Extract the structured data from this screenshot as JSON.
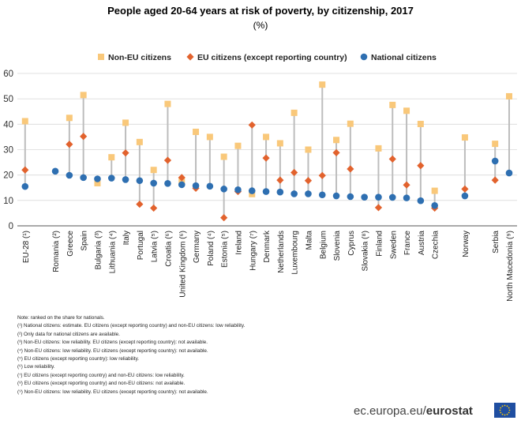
{
  "chart_data": {
    "type": "scatter",
    "title": "People aged 20-64 years at risk of poverty, by citizenship, 2017",
    "subtitle": "(%)",
    "ylim": [
      0,
      60
    ],
    "yticks": [
      0,
      10,
      20,
      30,
      40,
      50,
      60
    ],
    "grid": true,
    "legend_position": "top",
    "categories": [
      "EU-28 (¹)",
      "Romania (²)",
      "Greece",
      "Spain",
      "Bulgaria (³)",
      "Lithuania (⁴)",
      "Italy",
      "Portugal",
      "Latvia (⁵)",
      "Croatia (⁶)",
      "United Kingdom (⁶)",
      "Germany",
      "Poland (⁴)",
      "Estonia (⁵)",
      "Ireland",
      "Hungary (⁷)",
      "Denmark",
      "Netherlands",
      "Luxembourg",
      "Malta",
      "Belgium",
      "Slovenia",
      "Cyprus",
      "Slovakia (⁸)",
      "Finland",
      "Sweden",
      "France",
      "Austria",
      "Czechia",
      "Norway",
      "Serbia",
      "North Macedonia (⁹)"
    ],
    "groups": [
      1,
      2,
      2,
      2,
      2,
      2,
      2,
      2,
      2,
      2,
      2,
      2,
      2,
      2,
      2,
      2,
      2,
      2,
      2,
      2,
      2,
      2,
      2,
      2,
      2,
      2,
      2,
      2,
      2,
      3,
      4,
      4
    ],
    "series": [
      {
        "name": "Non-EU citizens",
        "color": "#f9c87a",
        "marker": "square",
        "values": [
          41.2,
          null,
          42.5,
          51.5,
          16.8,
          27,
          40.6,
          33,
          22,
          48,
          17.5,
          37,
          35,
          27.2,
          31.5,
          12.5,
          35,
          32.5,
          44.5,
          30,
          55.6,
          33.8,
          40.2,
          null,
          30.5,
          47.6,
          45.3,
          40.1,
          13.8,
          34.8,
          32.3,
          51
        ]
      },
      {
        "name": "EU citizens (except reporting country)",
        "color": "#e2622d",
        "marker": "diamond",
        "values": [
          22,
          null,
          32.1,
          35.2,
          null,
          null,
          28.7,
          8.5,
          7,
          25.8,
          19,
          14.8,
          null,
          3.2,
          13.5,
          39.7,
          26.7,
          18,
          21,
          17.8,
          19.8,
          28.8,
          22.4,
          null,
          7.2,
          26.3,
          16.1,
          23.7,
          7,
          14.5,
          18,
          null
        ]
      },
      {
        "name": "National citizens",
        "color": "#2e6fb1",
        "marker": "circle",
        "values": [
          15.5,
          21.5,
          19.9,
          19,
          18.5,
          18.8,
          18.2,
          17.8,
          16.8,
          16.7,
          16.2,
          15.8,
          15.6,
          14.5,
          14.2,
          13.8,
          13.5,
          13.3,
          12.6,
          12.6,
          12.2,
          11.8,
          11.5,
          11.3,
          11.3,
          11.2,
          11,
          9.9,
          8,
          11.8,
          25.5,
          20.8
        ]
      }
    ]
  },
  "notes": [
    "Note: ranked on the share for nationals.",
    "(¹) National citizens: estimate. EU citizens (except reporting country) and non-EU citizens: low reliability.",
    "(²) Only data for national citizens are available.",
    "(³) Non-EU citizens: low reliability. EU citizens (except reporting country): not available.",
    "(⁴) Non-EU citizens: low reliability. EU citizens (except reporting country): not available.",
    "(⁵) EU citizens (except reporting country): low reliability.",
    "(⁶) Low reliability.",
    "(⁷) EU citizens (except reporting country) and non-EU citizens: low reliability.",
    "(⁸) EU citizens (except reporting country) and non-EU citizens: not available.",
    "(⁹) Non-EU citizens: low reliability. EU citizens (except reporting country): not available."
  ],
  "branding": {
    "site": "ec.europa.eu/",
    "name": "eurostat",
    "flag_icon": "eu-flag-icon"
  }
}
